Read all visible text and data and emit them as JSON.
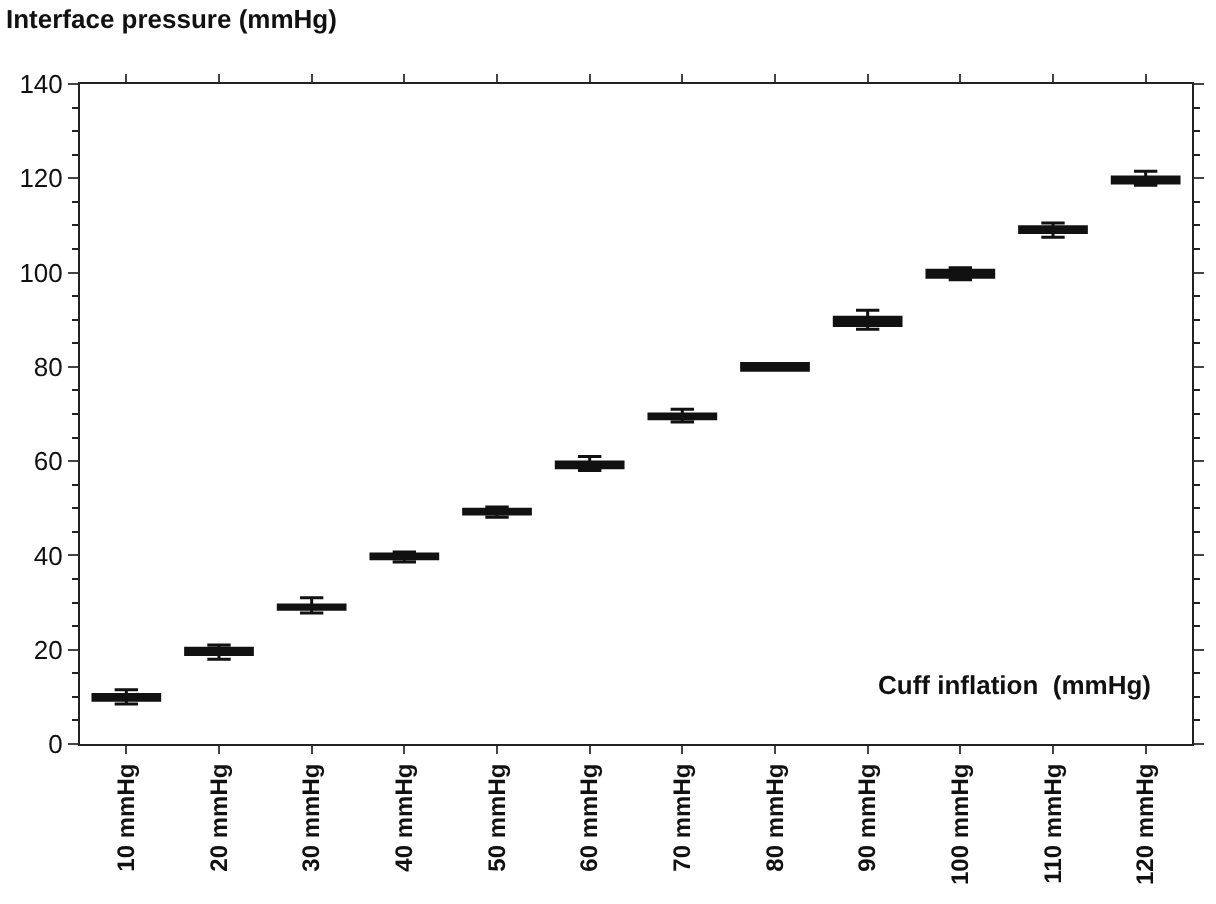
{
  "chart_data": {
    "type": "box",
    "ylabel": "Interface pressure (mmHg)",
    "xlabel": "Cuff inflation  (mmHg)",
    "categories": [
      "10 mmHg",
      "20 mmHg",
      "30 mmHg",
      "40 mmHg",
      "50 mmHg",
      "60 mmHg",
      "70 mmHg",
      "80 mmHg",
      "90 mmHg",
      "100 mmHg",
      "110 mmHg",
      "120 mmHg"
    ],
    "boxes": [
      {
        "low": 8.5,
        "q1": 9.3,
        "median": 10,
        "q3": 10.5,
        "high": 11.5
      },
      {
        "low": 18,
        "q1": 19,
        "median": 19.7,
        "q3": 20.3,
        "high": 21
      },
      {
        "low": 27.8,
        "q1": 28.6,
        "median": 29,
        "q3": 29.5,
        "high": 31
      },
      {
        "low": 38.6,
        "q1": 39.3,
        "median": 39.7,
        "q3": 40.3,
        "high": 40.7
      },
      {
        "low": 48.1,
        "q1": 48.8,
        "median": 49.3,
        "q3": 49.8,
        "high": 50.3
      },
      {
        "low": 58,
        "q1": 58.6,
        "median": 59.2,
        "q3": 59.8,
        "high": 61
      },
      {
        "low": 68.3,
        "q1": 69,
        "median": 69.5,
        "q3": 70,
        "high": 71
      },
      {
        "low": 79.3,
        "q1": 79.3,
        "median": 80,
        "q3": 80.7,
        "high": 80.7
      },
      {
        "low": 88,
        "q1": 88.8,
        "median": 89.7,
        "q3": 90.5,
        "high": 92
      },
      {
        "low": 98.5,
        "q1": 99,
        "median": 99.8,
        "q3": 100.5,
        "high": 101
      },
      {
        "low": 107.5,
        "q1": 108.5,
        "median": 109,
        "q3": 109.7,
        "high": 110.5
      },
      {
        "low": 118.5,
        "q1": 119,
        "median": 119.7,
        "q3": 120.3,
        "high": 121.5
      }
    ],
    "color": "#111111",
    "ylim": [
      0,
      140
    ],
    "yticks": [
      0,
      20,
      40,
      60,
      80,
      100,
      120,
      140
    ],
    "grid": false
  }
}
